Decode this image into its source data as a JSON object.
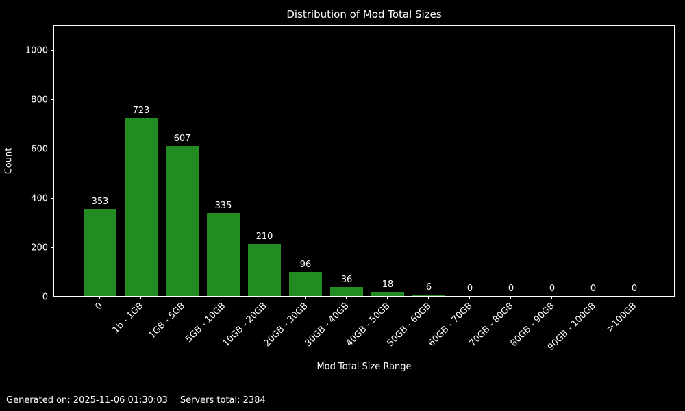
{
  "header": {
    "title": "Distribution of Mod Total Sizes"
  },
  "chart_data": {
    "type": "bar",
    "title": "Distribution of Mod Total Sizes",
    "xlabel": "Mod Total Size Range",
    "ylabel": "Count",
    "categories": [
      "0",
      "1b - 1GB",
      "1GB - 5GB",
      "5GB - 10GB",
      "10GB - 20GB",
      "20GB - 30GB",
      "30GB - 40GB",
      "40GB - 50GB",
      "50GB - 60GB",
      "60GB - 70GB",
      "70GB - 80GB",
      "80GB - 90GB",
      "90GB - 100GB",
      ">100GB"
    ],
    "values": [
      353,
      723,
      607,
      335,
      210,
      96,
      36,
      18,
      6,
      0,
      0,
      0,
      0,
      0
    ],
    "bar_labels": [
      "353",
      "723",
      "607",
      "335",
      "210",
      "96",
      "36",
      "18",
      "6",
      "0",
      "0",
      "0",
      "0",
      "0"
    ],
    "yticks": [
      0,
      200,
      400,
      600,
      800,
      1000
    ],
    "ylim": [
      0,
      1100
    ],
    "x_tick_rotation_deg": 45,
    "grid": false,
    "legend_position": "none",
    "colors": {
      "bar": "#228B22",
      "background": "#000000",
      "text": "#ffffff",
      "axis": "#ffffff"
    }
  },
  "footer": {
    "generated": "Generated on: 2025-11-06 01:30:03",
    "servers_total": "Servers total: 2384"
  }
}
